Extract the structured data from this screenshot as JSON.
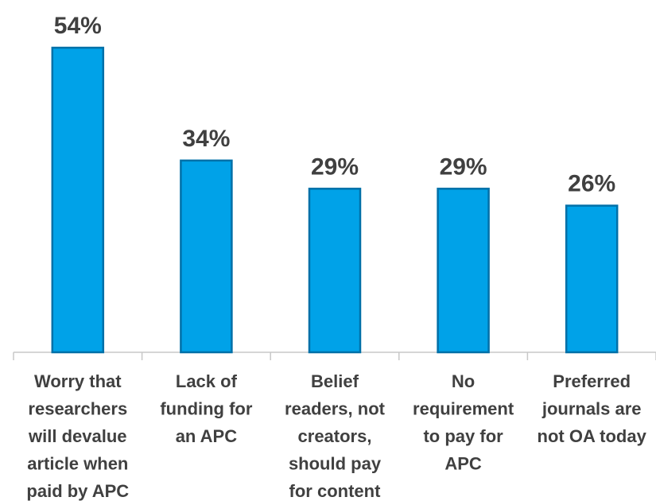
{
  "chart_data": {
    "type": "bar",
    "categories": [
      [
        "Worry that",
        "researchers",
        "will devalue",
        "article when",
        "paid by APC"
      ],
      [
        "Lack of",
        "funding for",
        "an APC"
      ],
      [
        "Belief",
        "readers, not",
        "creators,",
        "should pay",
        "for content"
      ],
      [
        "No",
        "requirement",
        "to pay for",
        "APC"
      ],
      [
        "Preferred",
        "journals are",
        "not OA today"
      ]
    ],
    "values": [
      54,
      34,
      29,
      29,
      26
    ],
    "data_labels": [
      "54%",
      "34%",
      "29%",
      "29%",
      "26%"
    ],
    "ylim": [
      0,
      54
    ],
    "grid": false,
    "bar_color": "#00a2e8",
    "bar_edge_color": "#0070a8",
    "text_color": "#404040"
  }
}
